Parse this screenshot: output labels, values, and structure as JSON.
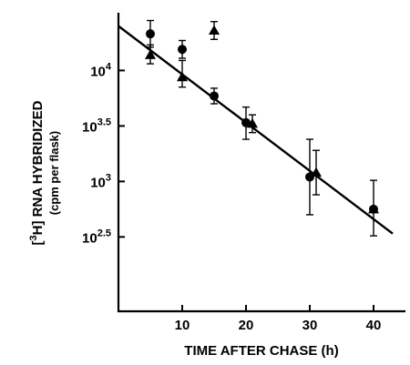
{
  "chart_data": {
    "type": "scatter",
    "xlabel": "TIME AFTER CHASE (h)",
    "ylabel": "[3H] RNA HYBRIDIZED",
    "ylabel_units": "(cpm per flask)",
    "x_ticks": [
      10,
      20,
      30,
      40
    ],
    "y_ticks": [
      {
        "base": "10",
        "exp": "4",
        "value": 4.0
      },
      {
        "base": "10",
        "exp": "3.5",
        "value": 3.5
      },
      {
        "base": "10",
        "exp": "3",
        "value": 3.0
      },
      {
        "base": "10",
        "exp": "2.5",
        "value": 2.5
      }
    ],
    "y_scale": "log10",
    "xlim": [
      0,
      45
    ],
    "ylim_log10": [
      1.83,
      4.52
    ],
    "grid": false,
    "series": [
      {
        "marker": "circle",
        "points": [
          {
            "x": 5,
            "y_log10": 4.33,
            "err_low": 4.21,
            "err_high": 4.45
          },
          {
            "x": 10,
            "y_log10": 4.19,
            "err_low": 4.11,
            "err_high": 4.27
          },
          {
            "x": 15,
            "y_log10": 3.77,
            "err_low": 3.7,
            "err_high": 3.84
          },
          {
            "x": 20,
            "y_log10": 3.53,
            "err_low": 3.38,
            "err_high": 3.67
          },
          {
            "x": 30,
            "y_log10": 3.04,
            "err_low": 2.7,
            "err_high": 3.38
          },
          {
            "x": 40,
            "y_log10": 2.75
          }
        ]
      },
      {
        "marker": "triangle",
        "points": [
          {
            "x": 5,
            "y_log10": 4.14,
            "err_low": 4.06,
            "err_high": 4.23
          },
          {
            "x": 10,
            "y_log10": 3.94,
            "err_low": 3.85,
            "err_high": 4.09
          },
          {
            "x": 15,
            "y_log10": 4.36,
            "err_low": 4.28,
            "err_high": 4.44
          },
          {
            "x": 21,
            "y_log10": 3.52,
            "err_low": 3.44,
            "err_high": 3.6
          },
          {
            "x": 31,
            "y_log10": 3.08,
            "err_low": 2.88,
            "err_high": 3.28
          },
          {
            "x": 40,
            "y_log10": 2.75,
            "err_low": 2.51,
            "err_high": 3.01
          }
        ]
      }
    ],
    "fit_line": {
      "x": [
        0,
        43
      ],
      "y_log10": [
        4.4,
        2.53
      ]
    }
  }
}
